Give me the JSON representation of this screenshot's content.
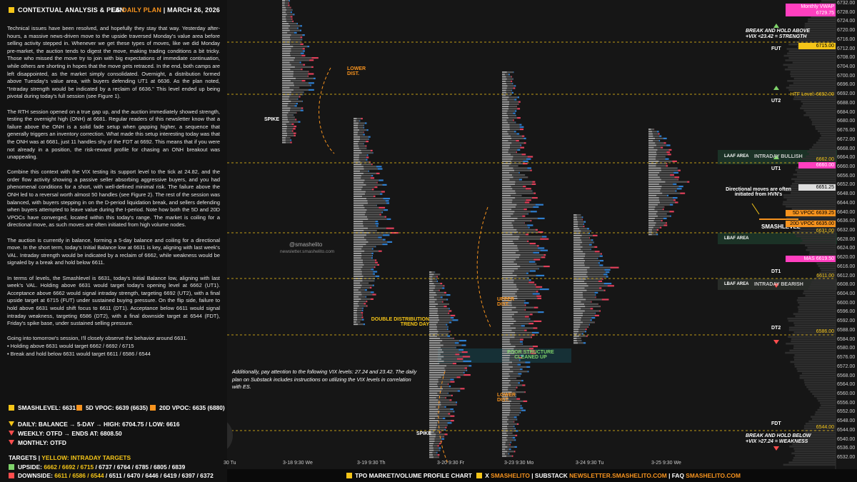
{
  "header": {
    "title": "CONTEXTUAL ANALYSIS & PLAN",
    "product": "ES",
    "plan": "DAILY PLAN",
    "date": "MARCH 26, 2026"
  },
  "paragraphs": [
    "Technical issues have been resolved, and hopefully they stay that way. Yesterday after-hours, a massive news-driven move to the upside traversed Monday's value area before selling activity stepped in. Whenever we get these types of moves, like we did Monday pre-market, the auction tends to digest the move, making trading conditions a bit tricky. Those who missed the move try to join with big expectations of immediate continuation, while others are shorting in hopes that the move gets retraced. In the end, both camps are left disappointed, as the market simply consolidated. Overnight, a distribution formed above Tuesday's value area, with buyers defending UT1 at 6636. As the plan noted, \"Intraday strength would be indicated by a reclaim of 6636.\" This level ended up being pivotal during today's full session (see Figure 1).",
    "The RTH session opened on a true gap up, and the auction immediately showed strength, testing the overnight high (ONH) at 6681. Regular readers of this newsletter know that a failure above the ONH is a solid fade setup when gapping higher, a sequence that generally triggers an inventory correction. What made this setup interesting today was that the ONH was at 6681, just 11 handles shy of the FDT at 6692. This means that if you were not already in a position, the risk-reward profile for chasing an ONH breakout was unappealing.",
    "Combine this context with the VIX testing its support level to the tick at 24.82, and the order flow activity showing a passive seller absorbing aggressive buyers, and you had phenomenal conditions for a short, with well-defined minimal risk. The failure above the ONH led to a reversal worth almost 50 handles (see Figure 2). The rest of the session was balanced, with buyers stepping in on the D-period liquidation break, and sellers defending when buyers attempted to leave value during the I-period. Note how both the 5D and 20D VPOCs have converged, located within this today's range. The market is coiling for a directional move, as such moves are often initiated from high volume nodes.",
    "The auction is currently in balance, forming a 5-day balance and coiling for a directional move. In the short term, today's Initial Balance low at 6631 is key, aligning with last week's VAL. Intraday strength would be indicated by a reclaim of 6662, while weakness would be signaled by a break and hold below 6611.",
    "In terms of levels, the Smashlevel is 6631, today's Initial Balance low, aligning with last week's VAL. Holding above 6631 would target today's opening level at 6662 (UT1). Acceptance above 6662 would signal intraday strength, targeting 6692 (UT2), with a final upside target at 6715 (FUT) under sustained buying pressure. On the flip side, failure to hold above 6631 would shift focus to 6611 (DT1). Acceptance below 6611 would signal intraday weakness, targeting 6586 (DT2), with a final downside target at 6544 (FDT), Friday's spike base, under sustained selling pressure.",
    "Going into tomorrow's session, I'll closely observe the behavior around 6631."
  ],
  "bullets": [
    "Holding above 6631 would target 6662 / 6692 / 6715",
    "Break and hold below 6631 would target 6611 / 6586 / 6544"
  ],
  "key_levels": [
    "SMASHLEVEL: 6631",
    "5D VPOC: 6639 (6635)",
    "20D VPOC: 6635 (6880)"
  ],
  "status": [
    "DAILY: BALANCE → 5-DAY → HIGH: 6704.75 / LOW: 6616",
    "WEEKLY: OTFD → ENDS AT: 6808.50",
    "MONTHLY: OTFD"
  ],
  "targets": {
    "title": "TARGETS",
    "legend": "YELLOW: INTRADAY TARGETS",
    "upside": {
      "label": "UPSIDE:",
      "intraday": "6662 / 6692 / 6715",
      "other": "/ 6737 / 6764 / 6785 / 6805 / 6839"
    },
    "downside": {
      "label": "DOWNSIDE:",
      "intraday": "6611 / 6586 / 6544",
      "other": "/ 6511 / 6470 / 6446 / 6419 / 6397 / 6372"
    }
  },
  "chart": {
    "annotations": {
      "spike_top": "SPIKE",
      "lower_dist_1": "LOWER DIST.",
      "watermark": "@smashelito",
      "watermark_url": "newsletter.smashelito.com",
      "double_dist": "DOUBLE DISTRIBUTION TREND DAY",
      "upper_dist": "UPPER DIST.",
      "poor_structure": "POOR STRUCTURE CLEANED UP",
      "lower_dist_2": "LOWER DIST.",
      "spike_bottom": "SPIKE",
      "note": "Additionally, pay attention to the following VIX levels: 27.24 and 23.42. The daily plan on Substack includes instructions on utilizing the VIX levels in correlation with ES.",
      "break_above": "BREAK AND HOLD ABOVE",
      "break_above_vix": "+VIX <23.42 = STRENGTH",
      "break_below": "BREAK AND HOLD BELOW",
      "break_below_vix": "+VIX >27.24 = WEAKNESS",
      "hvn_note": "Directional moves are often initiated from HVN's",
      "smashlevel": "SMASHLEVEL",
      "laaf": "LAAF AREA",
      "bullish": "INTRADAY BULLISH",
      "lbaf_1": "LBAF AREA",
      "lbaf_2": "LBAF AREA",
      "bearish": "INTRADAY BEARISH"
    },
    "levels": [
      "FUT",
      "UT2",
      "UT1",
      "DT1",
      "DT2",
      "FDT"
    ],
    "price_tags": [
      "Monthly VWAP",
      "6729.75",
      "6715.00",
      "HTF Level: 6692.00",
      "6662.00",
      "6660.00",
      "6651.25",
      "5D VPOC",
      "6639.25",
      "20D VPOC",
      "6635.00",
      "6631.00",
      "MAS",
      "6619.50",
      "6611.00",
      "6586.00",
      "6544.00"
    ],
    "axis": [
      "6732.00",
      "6728.00",
      "6724.00",
      "6720.00",
      "6716.00",
      "6712.00",
      "6708.00",
      "6704.00",
      "6700.00",
      "6696.00",
      "6692.00",
      "6688.00",
      "6684.00",
      "6680.00",
      "6676.00",
      "6672.00",
      "6668.00",
      "6664.00",
      "6660.00",
      "6656.00",
      "6652.00",
      "6648.00",
      "6644.00",
      "6640.00",
      "6636.00",
      "6632.00",
      "6628.00",
      "6624.00",
      "6620.00",
      "6616.00",
      "6612.00",
      "6608.00",
      "6604.00",
      "6600.00",
      "6596.00",
      "6592.00",
      "6588.00",
      "6584.00",
      "6580.00",
      "6576.00",
      "6572.00",
      "6568.00",
      "6564.00",
      "6560.00",
      "6556.00",
      "6552.00",
      "6548.00",
      "6544.00",
      "6540.00",
      "6536.00",
      "6532.00"
    ],
    "dates": [
      "30 Tu",
      "3-18 9:30 We",
      "3-19 9:30 Th",
      "3-20 9:30 Fr",
      "3-23 9:30 Mo",
      "3-24 9:30 Tu",
      "3-25 9:30 We"
    ]
  },
  "footer": {
    "chart_type": "TPO MARKET/VOLUME PROFILE CHART",
    "x_label": "X",
    "x_handle": "SMASHELITO",
    "substack_label": "SUBSTACK",
    "substack_url": "NEWSLETTER.SMASHELITO.COM",
    "faq_label": "FAQ",
    "faq_url": "SMASHELITO.COM"
  }
}
